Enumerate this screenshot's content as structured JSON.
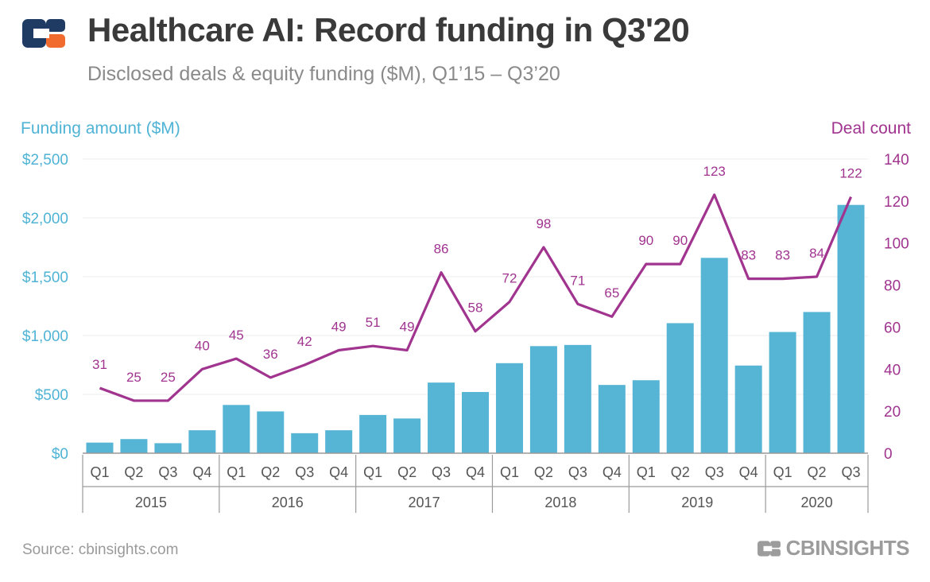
{
  "header": {
    "title": "Healthcare AI: Record funding in Q3'20",
    "subtitle": "Disclosed deals & equity funding ($M), Q1’15 – Q3’20"
  },
  "footer": {
    "source": "Source: cbinsights.com",
    "brand": "CBINSIGHTS"
  },
  "colors": {
    "bar": "#56b4d4",
    "line": "#a0348f",
    "left_axis": "#4fb3d5",
    "title": "#3a3a3a"
  },
  "chart_data": {
    "type": "bar",
    "categories": [
      "Q1",
      "Q2",
      "Q3",
      "Q4",
      "Q1",
      "Q2",
      "Q3",
      "Q4",
      "Q1",
      "Q2",
      "Q3",
      "Q4",
      "Q1",
      "Q2",
      "Q3",
      "Q4",
      "Q1",
      "Q2",
      "Q3",
      "Q4",
      "Q1",
      "Q2",
      "Q3"
    ],
    "years": [
      "2015",
      "2016",
      "2017",
      "2018",
      "2019",
      "2020"
    ],
    "series": [
      {
        "name": "Funding amount ($M)",
        "type": "bar",
        "axis": "left",
        "values": [
          90,
          120,
          85,
          195,
          410,
          355,
          170,
          195,
          325,
          295,
          600,
          520,
          765,
          910,
          920,
          580,
          620,
          1105,
          1660,
          745,
          1030,
          1200,
          2110
        ]
      },
      {
        "name": "Deal count",
        "type": "line",
        "axis": "right",
        "values": [
          31,
          25,
          25,
          40,
          45,
          36,
          42,
          49,
          51,
          49,
          86,
          58,
          72,
          98,
          71,
          65,
          90,
          90,
          123,
          83,
          83,
          84,
          122
        ],
        "labels": [
          "31",
          "25",
          "25",
          "40",
          "45",
          "36",
          "42",
          "49",
          "51",
          "49",
          "86",
          "58",
          "72",
          "98",
          "71",
          "65",
          "90",
          "90",
          "123",
          "83",
          "83",
          "84",
          "122"
        ]
      }
    ],
    "left_axis": {
      "label": "Funding amount ($M)",
      "ylim": [
        0,
        2500
      ],
      "ticks": [
        "$0",
        "$500",
        "$1,000",
        "$1,500",
        "$2,000",
        "$2,500"
      ]
    },
    "right_axis": {
      "label": "Deal count",
      "ylim": [
        0,
        140
      ],
      "ticks": [
        "0",
        "20",
        "40",
        "60",
        "80",
        "100",
        "120",
        "140"
      ]
    },
    "grid": true
  }
}
